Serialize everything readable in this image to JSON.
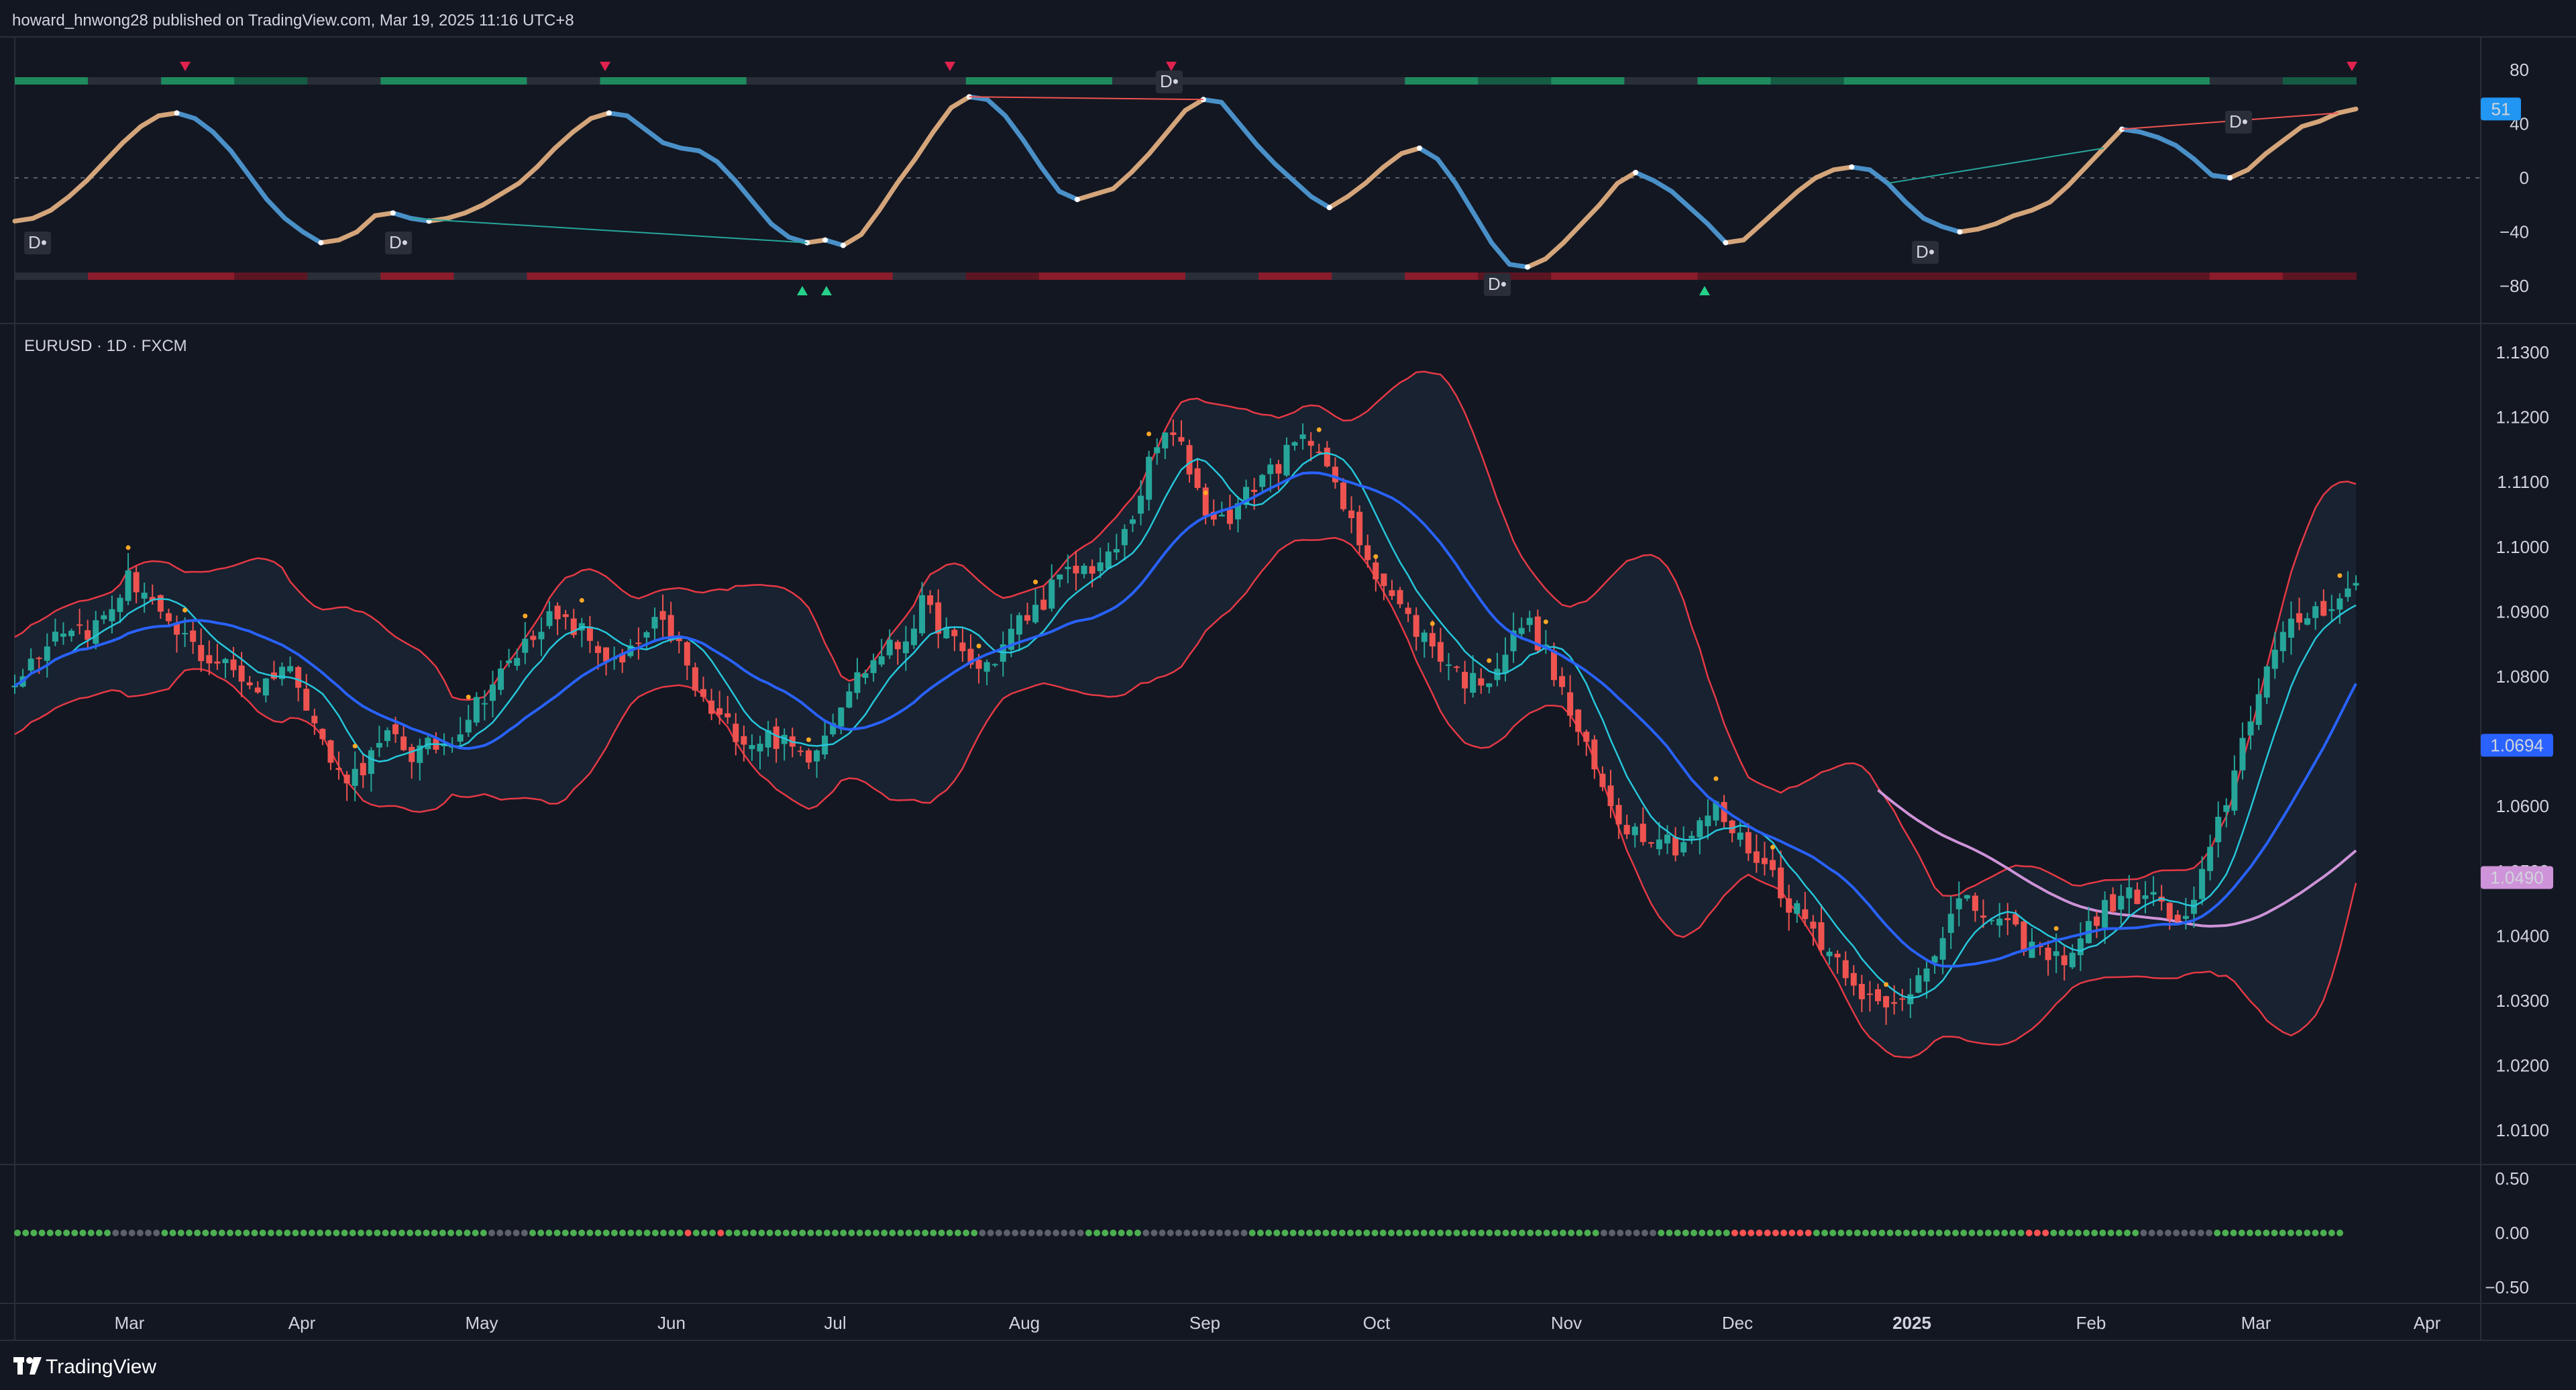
{
  "header": {
    "published": "howard_hnwong28 published on TradingView.com, Mar 19, 2025 11:16 UTC+8"
  },
  "footer": {
    "logo_text": "TradingView"
  },
  "colors": {
    "background": "#131722",
    "up": "#26a69a",
    "down": "#ef5350",
    "bb_band": "#e53945",
    "ma_fast": "#26c6da",
    "ma_mid": "#2962ff",
    "ma_slow": "#ce93d8",
    "osc_up": "#d4a57a",
    "osc_down": "#4a90c8",
    "dot_green": "#4caf50",
    "dot_red": "#ff5252",
    "dot_gray": "#5d606b",
    "label_blue": "#2962ff",
    "label_pink": "#ce93d8",
    "label_osc": "#2196f3"
  },
  "chart_data": [
    {
      "type": "line",
      "name": "oscillator",
      "y_ticks": [
        "80",
        "40",
        "0",
        "−40",
        "−80"
      ],
      "ylim": [
        -95,
        95
      ],
      "last_value_label": "51",
      "series": [
        {
          "values": [
            -32,
            -30,
            -24,
            -14,
            -2,
            12,
            26,
            38,
            46,
            48,
            44,
            34,
            20,
            2,
            -16,
            -30,
            -40,
            -48,
            -46,
            -40,
            -28,
            -26,
            -30,
            -32,
            -30,
            -26,
            -20,
            -12,
            -4,
            8,
            22,
            34,
            44,
            48,
            46,
            36,
            26,
            22,
            20,
            12,
            -2,
            -18,
            -34,
            -44,
            -48,
            -46,
            -50,
            -42,
            -24,
            -4,
            14,
            34,
            52,
            60,
            58,
            46,
            28,
            8,
            -10,
            -16,
            -12,
            -8,
            4,
            18,
            34,
            50,
            58,
            56,
            40,
            24,
            10,
            -2,
            -14,
            -22,
            -14,
            -4,
            8,
            18,
            22,
            14,
            -4,
            -26,
            -48,
            -64,
            -66,
            -60,
            -48,
            -34,
            -20,
            -4,
            4,
            -2,
            -10,
            -22,
            -34,
            -48,
            -46,
            -34,
            -22,
            -10,
            0,
            6,
            8,
            6,
            -4,
            -18,
            -30,
            -36,
            -40,
            -38,
            -34,
            -28,
            -24,
            -18,
            -6,
            8,
            22,
            36,
            34,
            30,
            24,
            14,
            2,
            0,
            6,
            18,
            28,
            38,
            42,
            48,
            51
          ]
        }
      ],
      "annotations": [
        "D",
        "D",
        "D",
        "D",
        "D",
        "D",
        "D"
      ]
    },
    {
      "type": "candlestick",
      "symbol": "EURUSD · 1D · FXCM",
      "y_ticks": [
        "1.1300",
        "1.1200",
        "1.1100",
        "1.1000",
        "1.0900",
        "1.0800",
        "1.0700",
        "1.0600",
        "1.0500",
        "1.0400",
        "1.0300",
        "1.0200",
        "1.0100"
      ],
      "ylim": [
        1.0035,
        1.1335
      ],
      "x_labels": [
        "Mar",
        "Apr",
        "May",
        "Jun",
        "Jul",
        "Aug",
        "Sep",
        "Oct",
        "Nov",
        "Dec",
        "2025",
        "Feb",
        "Mar",
        "Apr"
      ],
      "last_labels": [
        "1.0694",
        "1.0490"
      ],
      "close_path": [
        1.08,
        1.083,
        1.087,
        1.088,
        1.087,
        1.09,
        1.095,
        1.093,
        1.087,
        1.086,
        1.083,
        1.082,
        1.08,
        1.078,
        1.082,
        1.08,
        1.072,
        1.065,
        1.065,
        1.068,
        1.071,
        1.068,
        1.069,
        1.07,
        1.074,
        1.078,
        1.081,
        1.085,
        1.089,
        1.088,
        1.087,
        1.084,
        1.081,
        1.085,
        1.088,
        1.086,
        1.078,
        1.074,
        1.072,
        1.07,
        1.071,
        1.069,
        1.068,
        1.072,
        1.078,
        1.081,
        1.084,
        1.085,
        1.091,
        1.088,
        1.084,
        1.081,
        1.083,
        1.088,
        1.09,
        1.094,
        1.096,
        1.097,
        1.098,
        1.103,
        1.112,
        1.118,
        1.114,
        1.106,
        1.104,
        1.107,
        1.111,
        1.113,
        1.116,
        1.117,
        1.108,
        1.102,
        1.097,
        1.092,
        1.088,
        1.085,
        1.082,
        1.079,
        1.08,
        1.084,
        1.089,
        1.084,
        1.077,
        1.07,
        1.063,
        1.058,
        1.056,
        1.056,
        1.054,
        1.056,
        1.06,
        1.056,
        1.053,
        1.05,
        1.045,
        1.042,
        1.038,
        1.035,
        1.031,
        1.028,
        1.03,
        1.035,
        1.04,
        1.045,
        1.044,
        1.042,
        1.04,
        1.038,
        1.036,
        1.038,
        1.042,
        1.045,
        1.046,
        1.047,
        1.043,
        1.042,
        1.05,
        1.06,
        1.07,
        1.08,
        1.085,
        1.089,
        1.0905,
        1.092,
        1.094
      ],
      "series": [
        {
          "name": "",
          "role": "upper band"
        },
        {
          "name": "",
          "role": "lower band"
        },
        {
          "name": "",
          "role": "fast average"
        },
        {
          "name": "",
          "role": "slow average"
        },
        {
          "name": "",
          "role": "long average"
        }
      ]
    },
    {
      "type": "scatter",
      "name": "dot_row",
      "y_ticks": [
        "0.50",
        "0.00",
        "−0.50"
      ],
      "ylim": [
        -0.75,
        0.75
      ]
    }
  ]
}
